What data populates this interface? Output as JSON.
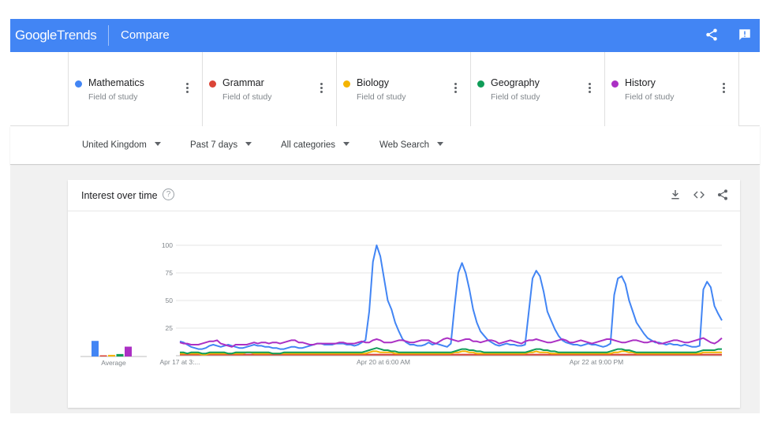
{
  "app": {
    "logo_google": "Google",
    "logo_trends": "Trends",
    "page_name": "Compare"
  },
  "terms": [
    {
      "name": "Mathematics",
      "type": "Field of study",
      "color": "#4285f4"
    },
    {
      "name": "Grammar",
      "type": "Field of study",
      "color": "#db4437"
    },
    {
      "name": "Biology",
      "type": "Field of study",
      "color": "#f4b400"
    },
    {
      "name": "Geography",
      "type": "Field of study",
      "color": "#0f9d58"
    },
    {
      "name": "History",
      "type": "Field of study",
      "color": "#ab30c4"
    }
  ],
  "filters": {
    "region": "United Kingdom",
    "time": "Past 7 days",
    "category": "All categories",
    "search_type": "Web Search"
  },
  "card": {
    "title": "Interest over time",
    "help": "?"
  },
  "icons": {
    "share": "share-icon",
    "feedback": "feedback-icon",
    "download": "download-icon",
    "embed": "embed-icon",
    "more": "more-vert-icon"
  },
  "chart_data": {
    "type": "line",
    "yticks": [
      "100",
      "75",
      "50",
      "25"
    ],
    "ylim": [
      0,
      100
    ],
    "grid": true,
    "x_tick_labels": [
      "Apr 17 at 3:...",
      "Apr 20 at 6:00 AM",
      "Apr 22 at 9:00 PM"
    ],
    "average_label": "Average",
    "averages": [
      {
        "name": "Mathematics",
        "value": 19,
        "color": "#4285f4"
      },
      {
        "name": "Grammar",
        "value": 1,
        "color": "#db4437"
      },
      {
        "name": "Biology",
        "value": 2,
        "color": "#f4b400"
      },
      {
        "name": "Geography",
        "value": 3,
        "color": "#0f9d58"
      },
      {
        "name": "History",
        "value": 12,
        "color": "#ab30c4"
      }
    ],
    "series": [
      {
        "name": "Mathematics",
        "color": "#4285f4",
        "values": [
          13,
          12,
          10,
          8,
          7,
          6,
          6,
          7,
          9,
          10,
          9,
          8,
          9,
          10,
          9,
          8,
          7,
          7,
          8,
          9,
          10,
          9,
          9,
          8,
          8,
          7,
          7,
          6,
          6,
          7,
          8,
          8,
          7,
          7,
          8,
          9,
          10,
          11,
          11,
          10,
          10,
          10,
          11,
          11,
          11,
          10,
          10,
          9,
          10,
          12,
          14,
          40,
          85,
          100,
          90,
          70,
          50,
          42,
          30,
          22,
          15,
          12,
          10,
          10,
          9,
          9,
          10,
          12,
          10,
          11,
          10,
          9,
          8,
          11,
          45,
          75,
          84,
          75,
          60,
          42,
          30,
          22,
          18,
          14,
          12,
          10,
          9,
          10,
          11,
          10,
          10,
          9,
          9,
          10,
          40,
          70,
          77,
          72,
          58,
          40,
          32,
          24,
          18,
          14,
          12,
          11,
          10,
          10,
          9,
          10,
          11,
          10,
          10,
          9,
          8,
          9,
          11,
          55,
          70,
          72,
          65,
          50,
          40,
          30,
          25,
          20,
          16,
          14,
          12,
          12,
          11,
          10,
          11,
          10,
          10,
          9,
          10,
          9,
          8,
          8,
          9,
          60,
          67,
          62,
          45,
          38,
          32
        ]
      },
      {
        "name": "Grammar",
        "color": "#db4437",
        "values": [
          1,
          1,
          1,
          1,
          1,
          1,
          1,
          1,
          1,
          1,
          1,
          1,
          1,
          1,
          1,
          1,
          1,
          1,
          1,
          1,
          1,
          1,
          1,
          1,
          1,
          1,
          1,
          1,
          1,
          1,
          1,
          1,
          1,
          1,
          1,
          1,
          1,
          1,
          1,
          1,
          1,
          1,
          1,
          1,
          1,
          1,
          1,
          1,
          1,
          1,
          1,
          1,
          1,
          1,
          1,
          1,
          1,
          1,
          1,
          1,
          1,
          1,
          1,
          1,
          1,
          1,
          1,
          1,
          1,
          1,
          1,
          1,
          1,
          1,
          1,
          1,
          1,
          1,
          1,
          1,
          1,
          1,
          1,
          1,
          1,
          1,
          1,
          1,
          1,
          1,
          1,
          1,
          1,
          1,
          1,
          1,
          1,
          1,
          1,
          1,
          1,
          1,
          1,
          1,
          1,
          1,
          1,
          1,
          1,
          1,
          1,
          1,
          1,
          1,
          1,
          1,
          1,
          1,
          1,
          1,
          1,
          1,
          1,
          1,
          1,
          1,
          1,
          1,
          1,
          1,
          1,
          1,
          1,
          1,
          1,
          1,
          1,
          1,
          1,
          1,
          1,
          1,
          1,
          1,
          1,
          1,
          1
        ]
      },
      {
        "name": "Biology",
        "color": "#f4b400",
        "values": [
          2,
          2,
          2,
          2,
          2,
          2,
          1,
          1,
          2,
          2,
          2,
          2,
          2,
          2,
          2,
          2,
          2,
          2,
          3,
          3,
          2,
          2,
          2,
          2,
          2,
          2,
          2,
          2,
          2,
          2,
          2,
          2,
          2,
          2,
          2,
          2,
          2,
          2,
          2,
          2,
          2,
          2,
          2,
          2,
          2,
          2,
          2,
          2,
          2,
          2,
          2,
          3,
          4,
          4,
          3,
          3,
          3,
          3,
          2,
          2,
          2,
          2,
          2,
          2,
          2,
          2,
          2,
          2,
          2,
          2,
          2,
          2,
          2,
          2,
          3,
          3,
          4,
          4,
          3,
          3,
          2,
          2,
          2,
          2,
          2,
          2,
          2,
          2,
          2,
          2,
          2,
          2,
          2,
          2,
          3,
          3,
          4,
          3,
          3,
          3,
          2,
          2,
          2,
          2,
          2,
          2,
          2,
          2,
          2,
          2,
          2,
          2,
          2,
          2,
          2,
          2,
          2,
          3,
          3,
          4,
          4,
          3,
          3,
          2,
          2,
          2,
          2,
          2,
          2,
          2,
          2,
          2,
          2,
          2,
          2,
          2,
          2,
          2,
          2,
          2,
          2,
          3,
          3,
          3,
          3,
          3,
          3
        ]
      },
      {
        "name": "Geography",
        "color": "#0f9d58",
        "values": [
          3,
          3,
          2,
          3,
          3,
          3,
          2,
          2,
          3,
          3,
          3,
          3,
          3,
          2,
          2,
          3,
          3,
          3,
          3,
          3,
          3,
          3,
          3,
          3,
          3,
          2,
          2,
          2,
          3,
          3,
          3,
          3,
          3,
          3,
          3,
          3,
          3,
          3,
          3,
          3,
          3,
          3,
          3,
          3,
          3,
          3,
          3,
          3,
          3,
          3,
          4,
          5,
          6,
          7,
          6,
          5,
          5,
          4,
          4,
          3,
          3,
          3,
          3,
          3,
          3,
          3,
          3,
          3,
          3,
          3,
          3,
          3,
          3,
          3,
          4,
          5,
          6,
          6,
          5,
          5,
          4,
          4,
          3,
          3,
          3,
          3,
          3,
          3,
          3,
          3,
          3,
          3,
          3,
          3,
          4,
          5,
          6,
          6,
          5,
          5,
          4,
          4,
          3,
          3,
          3,
          3,
          3,
          3,
          3,
          3,
          3,
          3,
          3,
          3,
          3,
          3,
          4,
          5,
          6,
          6,
          5,
          5,
          4,
          3,
          3,
          3,
          3,
          3,
          3,
          3,
          3,
          3,
          3,
          3,
          3,
          3,
          3,
          3,
          3,
          3,
          4,
          5,
          5,
          5,
          5,
          6,
          6
        ]
      },
      {
        "name": "History",
        "color": "#ab30c4",
        "values": [
          12,
          11,
          11,
          10,
          10,
          10,
          11,
          12,
          13,
          13,
          14,
          11,
          10,
          9,
          8,
          10,
          10,
          10,
          10,
          11,
          12,
          11,
          12,
          12,
          11,
          12,
          12,
          11,
          12,
          13,
          14,
          14,
          12,
          12,
          11,
          10,
          10,
          11,
          11,
          11,
          11,
          11,
          11,
          12,
          12,
          11,
          11,
          11,
          12,
          13,
          12,
          12,
          14,
          15,
          14,
          12,
          12,
          12,
          13,
          14,
          14,
          13,
          12,
          12,
          13,
          14,
          14,
          14,
          12,
          11,
          13,
          15,
          16,
          15,
          14,
          13,
          14,
          15,
          15,
          13,
          13,
          12,
          13,
          14,
          14,
          13,
          11,
          12,
          13,
          14,
          13,
          12,
          11,
          13,
          14,
          14,
          15,
          14,
          13,
          12,
          12,
          13,
          14,
          15,
          14,
          12,
          12,
          13,
          14,
          13,
          12,
          11,
          12,
          13,
          14,
          15,
          15,
          14,
          13,
          12,
          12,
          13,
          14,
          14,
          13,
          12,
          12,
          13,
          13,
          11,
          11,
          12,
          13,
          14,
          14,
          13,
          12,
          12,
          13,
          14,
          15,
          16,
          14,
          12,
          11,
          13,
          16
        ]
      }
    ]
  }
}
